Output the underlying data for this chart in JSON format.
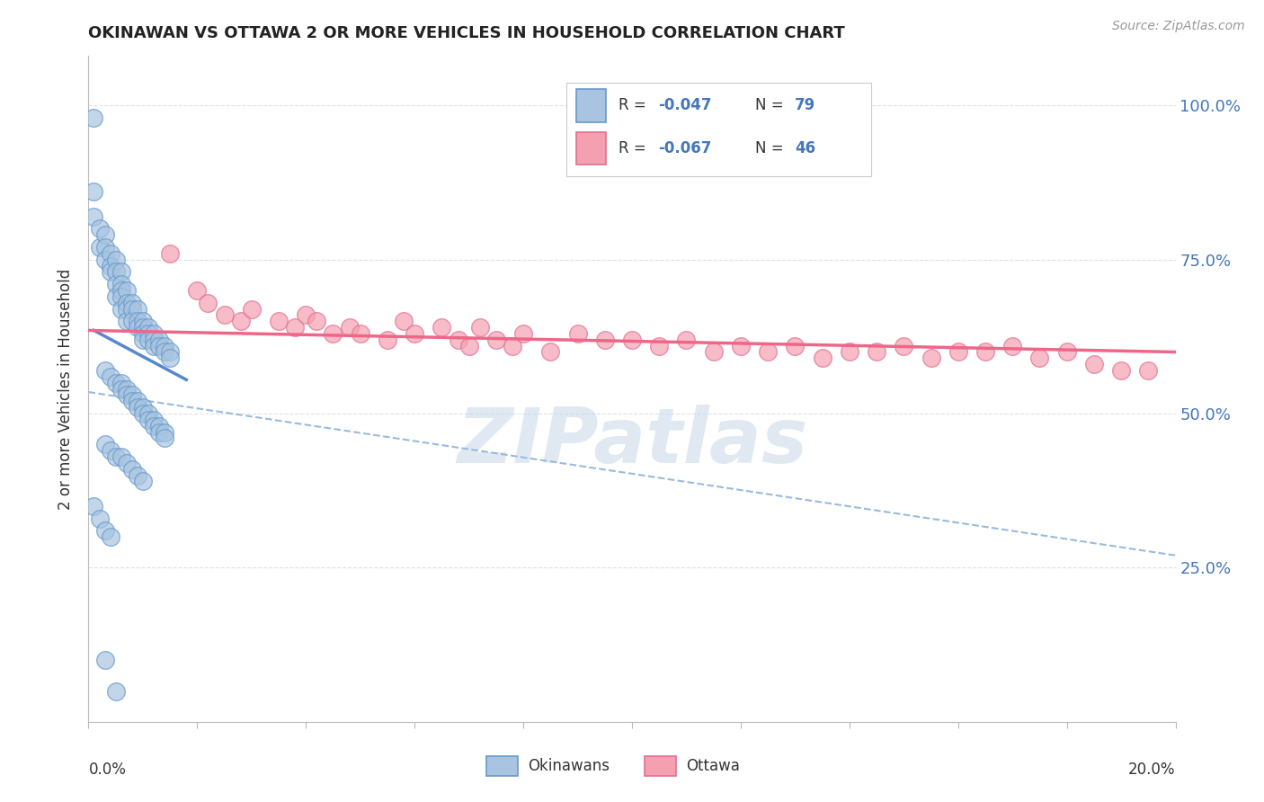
{
  "title": "OKINAWAN VS OTTAWA 2 OR MORE VEHICLES IN HOUSEHOLD CORRELATION CHART",
  "source_text": "Source: ZipAtlas.com",
  "ylabel": "2 or more Vehicles in Household",
  "watermark": "ZIPatlas",
  "xmin": 0.0,
  "xmax": 0.2,
  "ymin": 0.0,
  "ymax": 1.08,
  "right_yticks": [
    0.25,
    0.5,
    0.75,
    1.0
  ],
  "right_ytick_labels": [
    "25.0%",
    "50.0%",
    "75.0%",
    "100.0%"
  ],
  "blue_color": "#A8C4E0",
  "blue_edge": "#6699CC",
  "pink_color": "#F4A0B0",
  "pink_edge": "#E07090",
  "trend_blue": "#5588CC",
  "trend_pink": "#EE6688",
  "dashed_color": "#99BBDD",
  "blue_scatter": [
    [
      0.001,
      0.98
    ],
    [
      0.001,
      0.86
    ],
    [
      0.001,
      0.82
    ],
    [
      0.002,
      0.8
    ],
    [
      0.002,
      0.77
    ],
    [
      0.003,
      0.79
    ],
    [
      0.003,
      0.77
    ],
    [
      0.003,
      0.75
    ],
    [
      0.004,
      0.76
    ],
    [
      0.004,
      0.74
    ],
    [
      0.004,
      0.73
    ],
    [
      0.005,
      0.75
    ],
    [
      0.005,
      0.73
    ],
    [
      0.005,
      0.71
    ],
    [
      0.005,
      0.69
    ],
    [
      0.006,
      0.73
    ],
    [
      0.006,
      0.71
    ],
    [
      0.006,
      0.7
    ],
    [
      0.006,
      0.69
    ],
    [
      0.006,
      0.67
    ],
    [
      0.007,
      0.7
    ],
    [
      0.007,
      0.68
    ],
    [
      0.007,
      0.67
    ],
    [
      0.007,
      0.65
    ],
    [
      0.008,
      0.68
    ],
    [
      0.008,
      0.67
    ],
    [
      0.008,
      0.65
    ],
    [
      0.009,
      0.67
    ],
    [
      0.009,
      0.65
    ],
    [
      0.009,
      0.64
    ],
    [
      0.01,
      0.65
    ],
    [
      0.01,
      0.64
    ],
    [
      0.01,
      0.63
    ],
    [
      0.01,
      0.62
    ],
    [
      0.011,
      0.64
    ],
    [
      0.011,
      0.63
    ],
    [
      0.011,
      0.62
    ],
    [
      0.012,
      0.63
    ],
    [
      0.012,
      0.62
    ],
    [
      0.012,
      0.61
    ],
    [
      0.013,
      0.62
    ],
    [
      0.013,
      0.61
    ],
    [
      0.014,
      0.61
    ],
    [
      0.014,
      0.6
    ],
    [
      0.015,
      0.6
    ],
    [
      0.015,
      0.59
    ],
    [
      0.003,
      0.57
    ],
    [
      0.004,
      0.56
    ],
    [
      0.005,
      0.55
    ],
    [
      0.006,
      0.55
    ],
    [
      0.006,
      0.54
    ],
    [
      0.007,
      0.54
    ],
    [
      0.007,
      0.53
    ],
    [
      0.008,
      0.53
    ],
    [
      0.008,
      0.52
    ],
    [
      0.009,
      0.52
    ],
    [
      0.009,
      0.51
    ],
    [
      0.01,
      0.51
    ],
    [
      0.01,
      0.5
    ],
    [
      0.011,
      0.5
    ],
    [
      0.011,
      0.49
    ],
    [
      0.012,
      0.49
    ],
    [
      0.012,
      0.48
    ],
    [
      0.013,
      0.48
    ],
    [
      0.013,
      0.47
    ],
    [
      0.014,
      0.47
    ],
    [
      0.014,
      0.46
    ],
    [
      0.003,
      0.45
    ],
    [
      0.004,
      0.44
    ],
    [
      0.005,
      0.43
    ],
    [
      0.006,
      0.43
    ],
    [
      0.007,
      0.42
    ],
    [
      0.008,
      0.41
    ],
    [
      0.009,
      0.4
    ],
    [
      0.01,
      0.39
    ],
    [
      0.001,
      0.35
    ],
    [
      0.002,
      0.33
    ],
    [
      0.003,
      0.31
    ],
    [
      0.004,
      0.3
    ],
    [
      0.003,
      0.1
    ],
    [
      0.005,
      0.05
    ]
  ],
  "pink_scatter": [
    [
      0.015,
      0.76
    ],
    [
      0.02,
      0.7
    ],
    [
      0.022,
      0.68
    ],
    [
      0.025,
      0.66
    ],
    [
      0.028,
      0.65
    ],
    [
      0.03,
      0.67
    ],
    [
      0.035,
      0.65
    ],
    [
      0.038,
      0.64
    ],
    [
      0.04,
      0.66
    ],
    [
      0.042,
      0.65
    ],
    [
      0.045,
      0.63
    ],
    [
      0.048,
      0.64
    ],
    [
      0.05,
      0.63
    ],
    [
      0.055,
      0.62
    ],
    [
      0.058,
      0.65
    ],
    [
      0.06,
      0.63
    ],
    [
      0.065,
      0.64
    ],
    [
      0.068,
      0.62
    ],
    [
      0.07,
      0.61
    ],
    [
      0.072,
      0.64
    ],
    [
      0.075,
      0.62
    ],
    [
      0.078,
      0.61
    ],
    [
      0.08,
      0.63
    ],
    [
      0.085,
      0.6
    ],
    [
      0.09,
      0.63
    ],
    [
      0.095,
      0.62
    ],
    [
      0.1,
      0.62
    ],
    [
      0.105,
      0.61
    ],
    [
      0.11,
      0.62
    ],
    [
      0.115,
      0.6
    ],
    [
      0.12,
      0.61
    ],
    [
      0.125,
      0.6
    ],
    [
      0.13,
      0.61
    ],
    [
      0.135,
      0.59
    ],
    [
      0.14,
      0.6
    ],
    [
      0.145,
      0.6
    ],
    [
      0.15,
      0.61
    ],
    [
      0.155,
      0.59
    ],
    [
      0.16,
      0.6
    ],
    [
      0.165,
      0.6
    ],
    [
      0.17,
      0.61
    ],
    [
      0.175,
      0.59
    ],
    [
      0.18,
      0.6
    ],
    [
      0.185,
      0.58
    ],
    [
      0.19,
      0.57
    ],
    [
      0.195,
      0.57
    ]
  ],
  "blue_trend_x": [
    0.001,
    0.018
  ],
  "blue_trend_y": [
    0.635,
    0.555
  ],
  "pink_trend_x": [
    0.0,
    0.2
  ],
  "pink_trend_y": [
    0.635,
    0.6
  ],
  "dashed_trend_x": [
    0.0,
    0.2
  ],
  "dashed_trend_y": [
    0.535,
    0.27
  ],
  "background_color": "#FFFFFF",
  "grid_color": "#DDDDDD"
}
